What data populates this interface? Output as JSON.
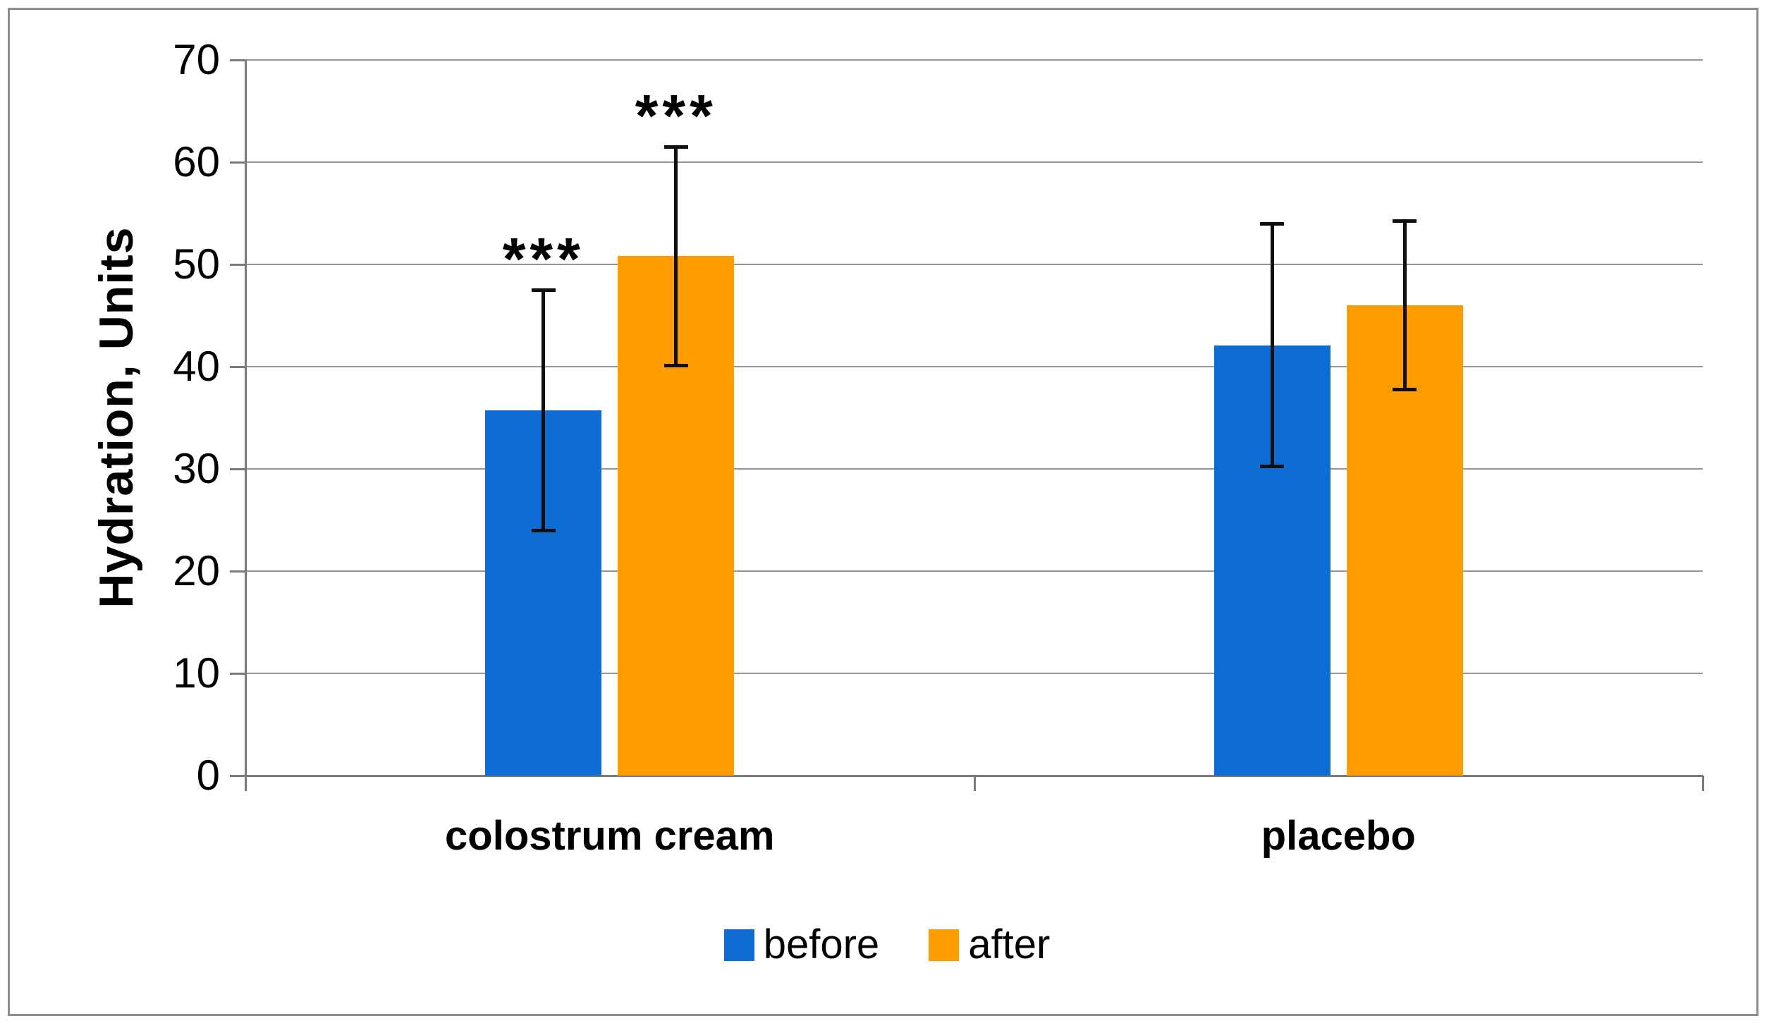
{
  "chart_data": {
    "type": "bar",
    "categories": [
      "colostrum cream",
      "placebo"
    ],
    "series": [
      {
        "name": "before",
        "color": "#0D6DD2",
        "values": [
          35.7,
          42.1
        ],
        "errors": [
          11.8,
          11.9
        ]
      },
      {
        "name": "after",
        "color": "#FF9D00",
        "values": [
          50.8,
          46.0
        ],
        "errors": [
          10.7,
          8.3
        ]
      }
    ],
    "ylabel": "Hydration, Units",
    "yticks": [
      0,
      10,
      20,
      30,
      40,
      50,
      60,
      70
    ],
    "ylim": [
      0,
      70
    ],
    "grid": true,
    "legend_position": "bottom-center",
    "annotations": [
      {
        "text": "***",
        "category_index": 0,
        "series_index": 0
      },
      {
        "text": "***",
        "category_index": 0,
        "series_index": 1
      }
    ],
    "axis_color": "#7A7A7A",
    "gridline_color": "#959595",
    "error_bar_color": "#0F0F0F",
    "frame_color": "#8E8E8E",
    "text_color": "#000000"
  }
}
